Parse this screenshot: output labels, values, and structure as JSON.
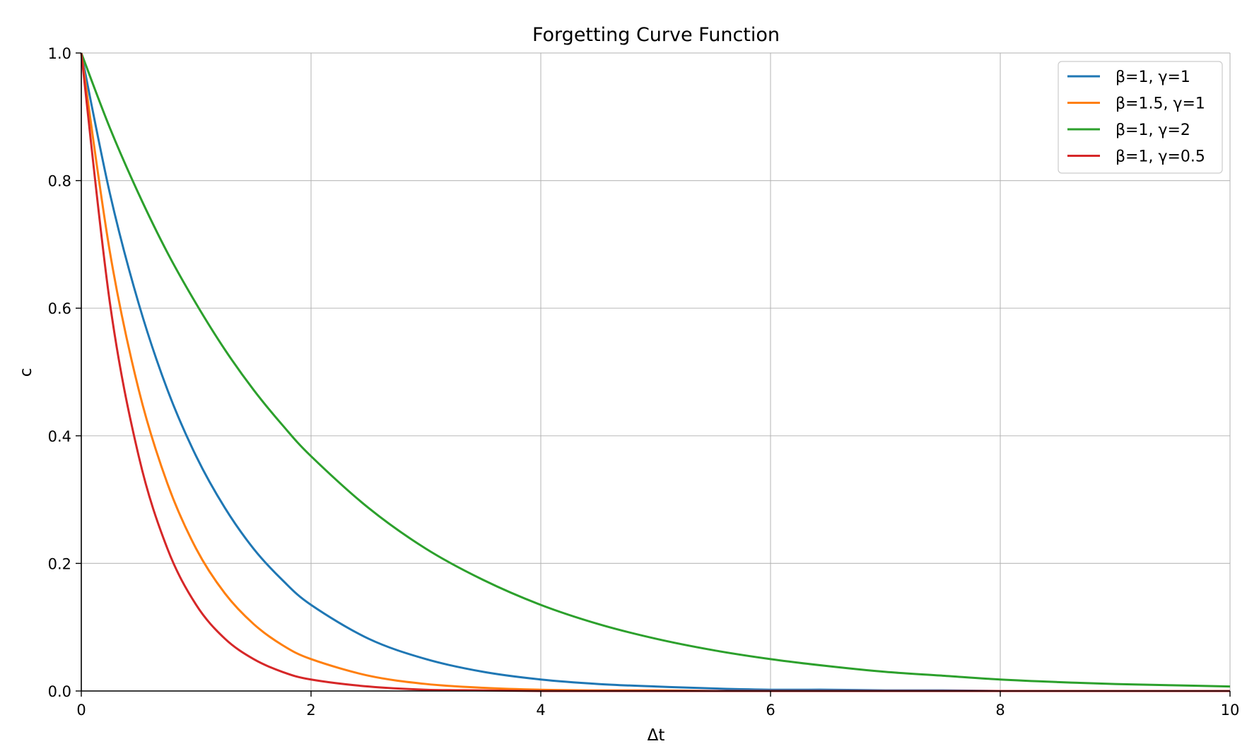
{
  "chart_data": {
    "type": "line",
    "title": "Forgetting Curve Function",
    "xlabel": "Δt",
    "ylabel": "c",
    "xlim": [
      0,
      10
    ],
    "ylim": [
      0,
      1
    ],
    "xticks": [
      0,
      2,
      4,
      6,
      8,
      10
    ],
    "yticks": [
      0.0,
      0.2,
      0.4,
      0.6,
      0.8,
      1.0
    ],
    "xtick_labels": [
      "0",
      "2",
      "4",
      "6",
      "8",
      "10"
    ],
    "ytick_labels": [
      "0.0",
      "0.2",
      "0.4",
      "0.6",
      "0.8",
      "1.0"
    ],
    "grid": true,
    "legend_position": "top-right",
    "series": [
      {
        "name": "β=1, γ=1",
        "color": "#1f77b4",
        "x": [
          0,
          0.25,
          0.5,
          0.75,
          1,
          1.25,
          1.5,
          1.75,
          2,
          2.5,
          3,
          3.5,
          4,
          4.5,
          5,
          5.5,
          6,
          6.5,
          7,
          7.5,
          8,
          8.5,
          9,
          9.5,
          10
        ],
        "y": [
          1.0,
          0.779,
          0.607,
          0.472,
          0.368,
          0.287,
          0.223,
          0.174,
          0.135,
          0.082,
          0.05,
          0.03,
          0.018,
          0.011,
          0.007,
          0.004,
          0.002,
          0.002,
          0.001,
          0.001,
          0.0,
          0.0,
          0.0,
          0.0,
          0.0
        ]
      },
      {
        "name": "β=1.5, γ=1",
        "color": "#ff7f0e",
        "x": [
          0,
          0.25,
          0.5,
          0.75,
          1,
          1.25,
          1.5,
          1.75,
          2,
          2.5,
          3,
          3.5,
          4,
          4.5,
          5,
          5.5,
          6,
          6.5,
          7,
          7.5,
          8,
          8.5,
          9,
          9.5,
          10
        ],
        "y": [
          1.0,
          0.687,
          0.472,
          0.325,
          0.223,
          0.153,
          0.105,
          0.072,
          0.05,
          0.024,
          0.011,
          0.005,
          0.002,
          0.001,
          0.001,
          0.0,
          0.0,
          0.0,
          0.0,
          0.0,
          0.0,
          0.0,
          0.0,
          0.0,
          0.0
        ]
      },
      {
        "name": "β=1, γ=2",
        "color": "#2ca02c",
        "x": [
          0,
          0.25,
          0.5,
          0.75,
          1,
          1.25,
          1.5,
          1.75,
          2,
          2.5,
          3,
          3.5,
          4,
          4.5,
          5,
          5.5,
          6,
          6.5,
          7,
          7.5,
          8,
          8.5,
          9,
          9.5,
          10
        ],
        "y": [
          1.0,
          0.882,
          0.779,
          0.687,
          0.607,
          0.535,
          0.472,
          0.417,
          0.368,
          0.287,
          0.223,
          0.174,
          0.135,
          0.105,
          0.082,
          0.064,
          0.05,
          0.039,
          0.03,
          0.024,
          0.018,
          0.014,
          0.011,
          0.009,
          0.007
        ]
      },
      {
        "name": "β=1, γ=0.5",
        "color": "#d62728",
        "x": [
          0,
          0.25,
          0.5,
          0.75,
          1,
          1.25,
          1.5,
          1.75,
          2,
          2.5,
          3,
          3.5,
          4,
          4.5,
          5,
          5.5,
          6,
          6.5,
          7,
          7.5,
          8,
          8.5,
          9,
          9.5,
          10
        ],
        "y": [
          1.0,
          0.607,
          0.368,
          0.223,
          0.135,
          0.082,
          0.05,
          0.03,
          0.018,
          0.007,
          0.002,
          0.001,
          0.0,
          0.0,
          0.0,
          0.0,
          0.0,
          0.0,
          0.0,
          0.0,
          0.0,
          0.0,
          0.0,
          0.0,
          0.0
        ]
      }
    ]
  }
}
